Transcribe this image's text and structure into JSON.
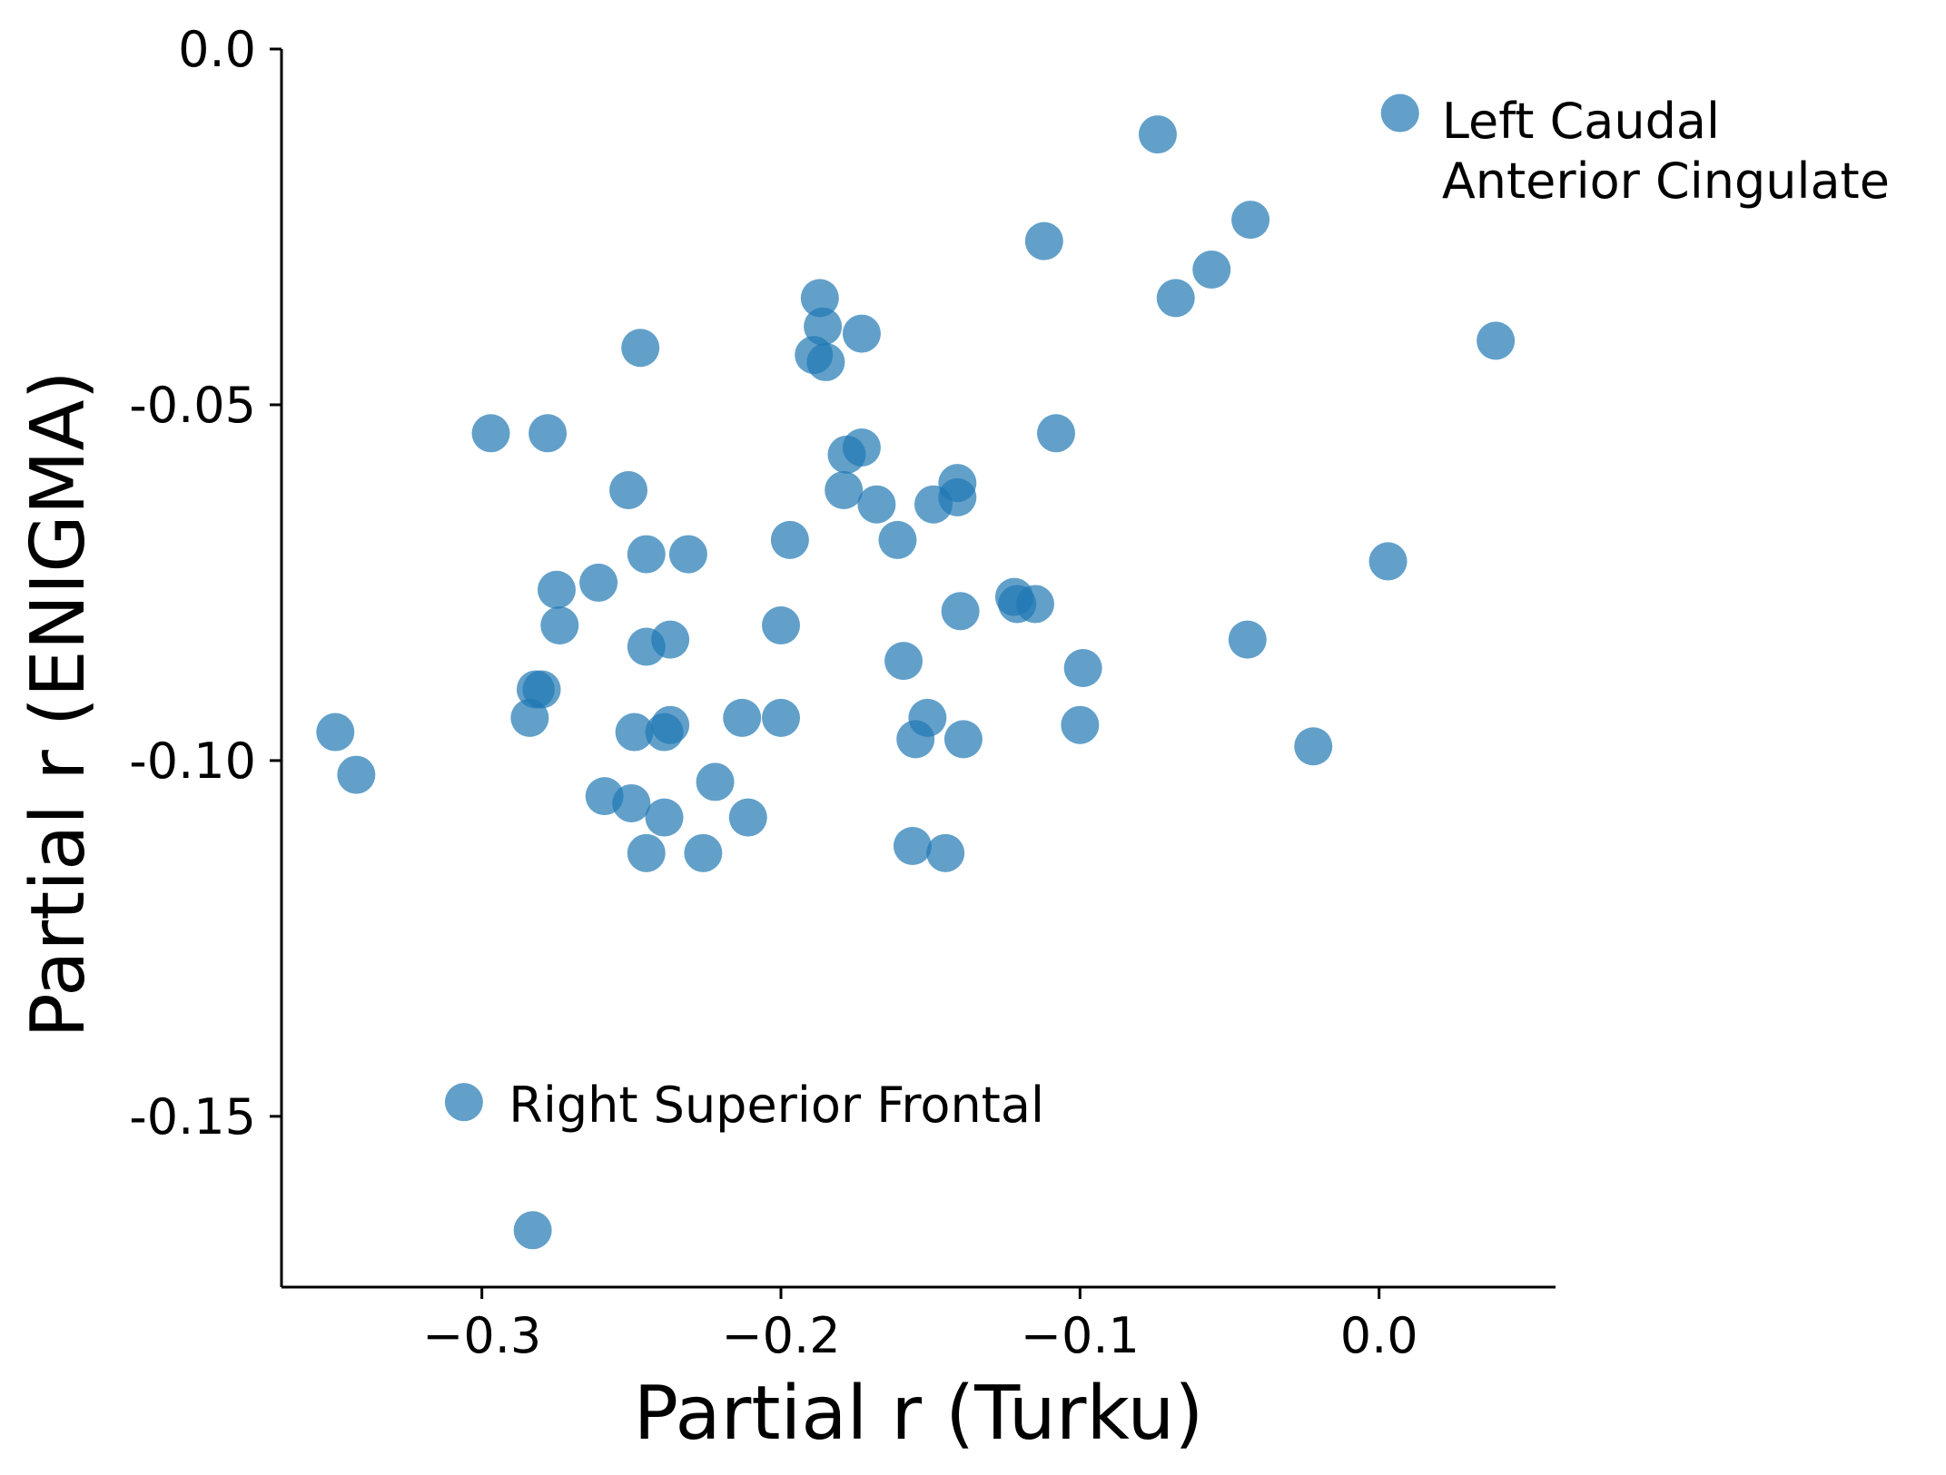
{
  "chart_data": {
    "type": "scatter",
    "xlabel": "Partial r (Turku)",
    "ylabel": "Partial r (ENIGMA)",
    "xlim": [
      -0.367,
      0.059
    ],
    "ylim": [
      -0.174,
      0.0
    ],
    "x_ticks": [
      -0.3,
      -0.2,
      -0.1,
      0.0
    ],
    "x_tick_labels": [
      "−0.3",
      "−0.2",
      "−0.1",
      "0.0"
    ],
    "y_ticks": [
      0.0,
      -0.05,
      -0.1,
      -0.15
    ],
    "y_tick_labels": [
      "0.0",
      "-0.05",
      "-0.10",
      "-0.15"
    ],
    "grid": false,
    "marker_color": "#1f77b4",
    "points": [
      {
        "x": 0.007,
        "y": -0.009
      },
      {
        "x": -0.074,
        "y": -0.012
      },
      {
        "x": -0.043,
        "y": -0.024
      },
      {
        "x": -0.112,
        "y": -0.027
      },
      {
        "x": -0.056,
        "y": -0.031
      },
      {
        "x": -0.068,
        "y": -0.035
      },
      {
        "x": 0.039,
        "y": -0.041
      },
      {
        "x": -0.187,
        "y": -0.035
      },
      {
        "x": -0.186,
        "y": -0.039
      },
      {
        "x": -0.173,
        "y": -0.04
      },
      {
        "x": -0.247,
        "y": -0.042
      },
      {
        "x": -0.189,
        "y": -0.043
      },
      {
        "x": -0.185,
        "y": -0.044
      },
      {
        "x": -0.297,
        "y": -0.054
      },
      {
        "x": -0.278,
        "y": -0.054
      },
      {
        "x": -0.108,
        "y": -0.054
      },
      {
        "x": -0.173,
        "y": -0.056
      },
      {
        "x": -0.178,
        "y": -0.057
      },
      {
        "x": -0.251,
        "y": -0.062
      },
      {
        "x": -0.179,
        "y": -0.062
      },
      {
        "x": -0.141,
        "y": -0.061
      },
      {
        "x": -0.168,
        "y": -0.064
      },
      {
        "x": -0.149,
        "y": -0.064
      },
      {
        "x": -0.141,
        "y": -0.063
      },
      {
        "x": -0.197,
        "y": -0.069
      },
      {
        "x": -0.161,
        "y": -0.069
      },
      {
        "x": -0.245,
        "y": -0.071
      },
      {
        "x": -0.231,
        "y": -0.071
      },
      {
        "x": 0.003,
        "y": -0.072
      },
      {
        "x": -0.261,
        "y": -0.075
      },
      {
        "x": -0.275,
        "y": -0.076
      },
      {
        "x": -0.122,
        "y": -0.077
      },
      {
        "x": -0.121,
        "y": -0.078
      },
      {
        "x": -0.115,
        "y": -0.078
      },
      {
        "x": -0.14,
        "y": -0.079
      },
      {
        "x": -0.274,
        "y": -0.081
      },
      {
        "x": -0.2,
        "y": -0.081
      },
      {
        "x": -0.237,
        "y": -0.083
      },
      {
        "x": -0.245,
        "y": -0.084
      },
      {
        "x": -0.044,
        "y": -0.083
      },
      {
        "x": -0.159,
        "y": -0.086
      },
      {
        "x": -0.099,
        "y": -0.087
      },
      {
        "x": -0.282,
        "y": -0.09
      },
      {
        "x": -0.28,
        "y": -0.09
      },
      {
        "x": -0.284,
        "y": -0.094
      },
      {
        "x": -0.213,
        "y": -0.094
      },
      {
        "x": -0.2,
        "y": -0.094
      },
      {
        "x": -0.151,
        "y": -0.094
      },
      {
        "x": -0.237,
        "y": -0.095
      },
      {
        "x": -0.1,
        "y": -0.095
      },
      {
        "x": -0.349,
        "y": -0.096
      },
      {
        "x": -0.249,
        "y": -0.096
      },
      {
        "x": -0.239,
        "y": -0.096
      },
      {
        "x": -0.155,
        "y": -0.097
      },
      {
        "x": -0.139,
        "y": -0.097
      },
      {
        "x": -0.022,
        "y": -0.098
      },
      {
        "x": -0.342,
        "y": -0.102
      },
      {
        "x": -0.222,
        "y": -0.103
      },
      {
        "x": -0.259,
        "y": -0.105
      },
      {
        "x": -0.25,
        "y": -0.106
      },
      {
        "x": -0.239,
        "y": -0.108
      },
      {
        "x": -0.211,
        "y": -0.108
      },
      {
        "x": -0.245,
        "y": -0.113
      },
      {
        "x": -0.226,
        "y": -0.113
      },
      {
        "x": -0.156,
        "y": -0.112
      },
      {
        "x": -0.145,
        "y": -0.113
      },
      {
        "x": -0.306,
        "y": -0.148
      },
      {
        "x": -0.283,
        "y": -0.166
      }
    ],
    "annotations": [
      {
        "lines": [
          "Left Caudal",
          "Anterior Cingulate"
        ],
        "x": 0.021,
        "y": -0.0125
      },
      {
        "lines": [
          "Right Superior Frontal"
        ],
        "x": -0.291,
        "y": -0.1508
      }
    ]
  }
}
